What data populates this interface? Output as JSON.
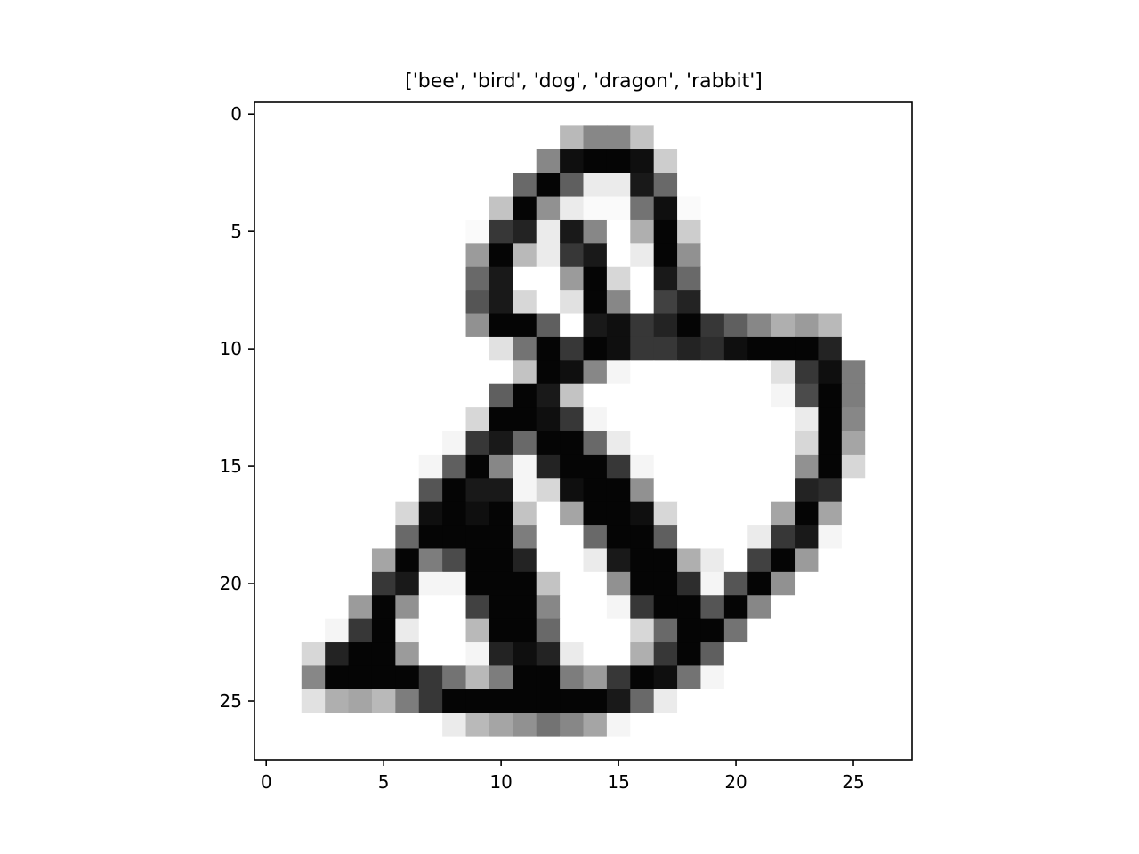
{
  "chart_data": {
    "type": "heatmap",
    "title": "['bee', 'bird', 'dog', 'dragon', 'rabbit']",
    "xlabel": "",
    "ylabel": "",
    "colormap": "gray_r",
    "value_range": [
      0,
      255
    ],
    "xlim": [
      -0.5,
      27.5
    ],
    "ylim": [
      27.5,
      -0.5
    ],
    "x_ticks": [
      0,
      5,
      10,
      15,
      20,
      25
    ],
    "y_ticks": [
      0,
      5,
      10,
      15,
      20,
      25
    ],
    "x_tick_labels": [
      "0",
      "5",
      "10",
      "15",
      "20",
      "25"
    ],
    "y_tick_labels": [
      "0",
      "5",
      "10",
      "15",
      "20",
      "25"
    ],
    "grid": false,
    "matrix": [
      [
        0,
        0,
        0,
        0,
        0,
        0,
        0,
        0,
        0,
        0,
        0,
        0,
        0,
        0,
        0,
        0,
        0,
        0,
        0,
        0,
        0,
        0,
        0,
        0,
        0,
        0,
        0,
        0
      ],
      [
        0,
        0,
        0,
        0,
        0,
        0,
        0,
        0,
        0,
        0,
        0,
        0,
        0,
        70,
        120,
        120,
        60,
        0,
        0,
        0,
        0,
        0,
        0,
        0,
        0,
        0,
        0,
        0
      ],
      [
        0,
        0,
        0,
        0,
        0,
        0,
        0,
        0,
        0,
        0,
        0,
        0,
        120,
        240,
        250,
        250,
        240,
        50,
        0,
        0,
        0,
        0,
        0,
        0,
        0,
        0,
        0,
        0
      ],
      [
        0,
        0,
        0,
        0,
        0,
        0,
        0,
        0,
        0,
        0,
        0,
        150,
        250,
        160,
        20,
        20,
        230,
        150,
        0,
        0,
        0,
        0,
        0,
        0,
        0,
        0,
        0,
        0
      ],
      [
        0,
        0,
        0,
        0,
        0,
        0,
        0,
        0,
        0,
        0,
        60,
        250,
        110,
        20,
        5,
        5,
        140,
        240,
        5,
        0,
        0,
        0,
        0,
        0,
        0,
        0,
        0,
        0
      ],
      [
        0,
        0,
        0,
        0,
        0,
        0,
        0,
        0,
        0,
        5,
        200,
        220,
        20,
        230,
        120,
        0,
        80,
        250,
        50,
        0,
        0,
        0,
        0,
        0,
        0,
        0,
        0,
        0
      ],
      [
        0,
        0,
        0,
        0,
        0,
        0,
        0,
        0,
        0,
        100,
        250,
        70,
        20,
        200,
        230,
        0,
        20,
        250,
        110,
        0,
        0,
        0,
        0,
        0,
        0,
        0,
        0,
        0
      ],
      [
        0,
        0,
        0,
        0,
        0,
        0,
        0,
        0,
        0,
        150,
        230,
        0,
        0,
        100,
        250,
        40,
        0,
        230,
        150,
        0,
        0,
        0,
        0,
        0,
        0,
        0,
        0,
        0
      ],
      [
        0,
        0,
        0,
        0,
        0,
        0,
        0,
        0,
        0,
        170,
        230,
        40,
        0,
        30,
        250,
        120,
        0,
        190,
        220,
        0,
        0,
        0,
        0,
        0,
        0,
        0,
        0,
        0
      ],
      [
        0,
        0,
        0,
        0,
        0,
        0,
        0,
        0,
        0,
        110,
        250,
        250,
        160,
        0,
        230,
        240,
        200,
        220,
        250,
        200,
        160,
        120,
        80,
        100,
        70,
        0,
        0,
        0
      ],
      [
        0,
        0,
        0,
        0,
        0,
        0,
        0,
        0,
        0,
        0,
        30,
        140,
        250,
        200,
        250,
        240,
        200,
        200,
        220,
        210,
        240,
        250,
        250,
        250,
        220,
        0,
        0,
        0
      ],
      [
        0,
        0,
        0,
        0,
        0,
        0,
        0,
        0,
        0,
        0,
        0,
        60,
        250,
        240,
        120,
        10,
        0,
        0,
        0,
        0,
        0,
        0,
        30,
        200,
        240,
        130,
        0,
        0
      ],
      [
        0,
        0,
        0,
        0,
        0,
        0,
        0,
        0,
        0,
        0,
        160,
        250,
        230,
        60,
        0,
        0,
        0,
        0,
        0,
        0,
        0,
        0,
        10,
        180,
        250,
        130,
        0,
        0
      ],
      [
        0,
        0,
        0,
        0,
        0,
        0,
        0,
        0,
        0,
        40,
        250,
        250,
        240,
        200,
        10,
        0,
        0,
        0,
        0,
        0,
        0,
        0,
        0,
        20,
        250,
        120,
        0,
        0
      ],
      [
        0,
        0,
        0,
        0,
        0,
        0,
        0,
        0,
        10,
        200,
        230,
        150,
        250,
        250,
        150,
        20,
        0,
        0,
        0,
        0,
        0,
        0,
        0,
        40,
        250,
        90,
        0,
        0
      ],
      [
        0,
        0,
        0,
        0,
        0,
        0,
        0,
        10,
        160,
        250,
        120,
        10,
        220,
        250,
        250,
        200,
        10,
        0,
        0,
        0,
        0,
        0,
        0,
        110,
        250,
        40,
        0,
        0
      ],
      [
        0,
        0,
        0,
        0,
        0,
        0,
        0,
        170,
        250,
        230,
        230,
        10,
        40,
        240,
        250,
        250,
        110,
        0,
        0,
        0,
        0,
        0,
        0,
        220,
        210,
        0,
        0,
        0
      ],
      [
        0,
        0,
        0,
        0,
        0,
        0,
        40,
        240,
        250,
        240,
        250,
        60,
        0,
        90,
        250,
        250,
        240,
        40,
        0,
        0,
        0,
        0,
        90,
        250,
        90,
        0,
        0,
        0
      ],
      [
        0,
        0,
        0,
        0,
        0,
        0,
        150,
        250,
        250,
        250,
        250,
        130,
        0,
        0,
        150,
        250,
        250,
        160,
        0,
        0,
        0,
        20,
        200,
        230,
        10,
        0,
        0,
        0
      ],
      [
        0,
        0,
        0,
        0,
        0,
        90,
        250,
        130,
        180,
        250,
        250,
        220,
        0,
        0,
        20,
        230,
        250,
        250,
        80,
        20,
        0,
        190,
        250,
        100,
        0,
        0,
        0,
        0
      ],
      [
        0,
        0,
        0,
        0,
        0,
        200,
        230,
        10,
        10,
        250,
        250,
        250,
        60,
        0,
        0,
        110,
        250,
        250,
        210,
        10,
        170,
        250,
        110,
        0,
        0,
        0,
        0,
        0
      ],
      [
        0,
        0,
        0,
        0,
        100,
        250,
        110,
        0,
        0,
        190,
        250,
        250,
        120,
        0,
        0,
        10,
        200,
        250,
        250,
        170,
        250,
        120,
        0,
        0,
        0,
        0,
        0,
        0
      ],
      [
        0,
        0,
        0,
        10,
        200,
        250,
        20,
        0,
        0,
        70,
        250,
        250,
        150,
        0,
        0,
        0,
        40,
        150,
        250,
        250,
        140,
        0,
        0,
        0,
        0,
        0,
        0,
        0
      ],
      [
        0,
        0,
        40,
        220,
        250,
        250,
        100,
        0,
        0,
        10,
        220,
        240,
        220,
        20,
        0,
        0,
        80,
        200,
        250,
        160,
        0,
        0,
        0,
        0,
        0,
        0,
        0,
        0
      ],
      [
        0,
        0,
        120,
        250,
        250,
        250,
        250,
        200,
        140,
        70,
        130,
        250,
        250,
        130,
        100,
        200,
        250,
        240,
        140,
        10,
        0,
        0,
        0,
        0,
        0,
        0,
        0,
        0
      ],
      [
        0,
        0,
        30,
        80,
        90,
        70,
        130,
        200,
        250,
        250,
        250,
        250,
        250,
        250,
        250,
        230,
        150,
        20,
        0,
        0,
        0,
        0,
        0,
        0,
        0,
        0,
        0,
        0
      ],
      [
        0,
        0,
        0,
        0,
        0,
        0,
        0,
        0,
        20,
        70,
        90,
        110,
        140,
        120,
        90,
        10,
        0,
        0,
        0,
        0,
        0,
        0,
        0,
        0,
        0,
        0,
        0,
        0
      ],
      [
        0,
        0,
        0,
        0,
        0,
        0,
        0,
        0,
        0,
        0,
        0,
        0,
        0,
        0,
        0,
        0,
        0,
        0,
        0,
        0,
        0,
        0,
        0,
        0,
        0,
        0,
        0,
        0
      ]
    ]
  }
}
